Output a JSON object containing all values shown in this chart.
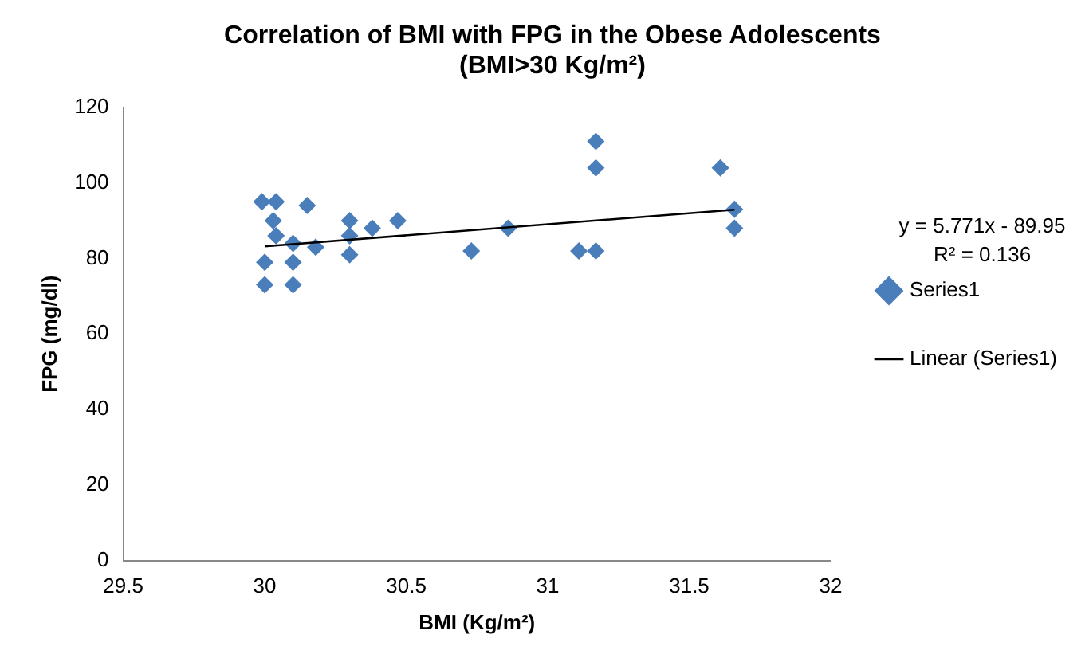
{
  "chart_data": {
    "type": "scatter",
    "title": "Correlation of BMI with FPG in the Obese Adolescents\n(BMI>30 Kg/m²)",
    "xlabel": "BMI (Kg/m²)",
    "ylabel": "FPG (mg/dl)",
    "xlim": [
      29.5,
      32
    ],
    "xticks": [
      29.5,
      30,
      30.5,
      31,
      31.5,
      32
    ],
    "ylim": [
      0,
      120
    ],
    "yticks": [
      0,
      20,
      40,
      60,
      80,
      100,
      120
    ],
    "series": [
      {
        "name": "Series1",
        "color": "#4a7ebb",
        "x": [
          29.99,
          30.04,
          30.15,
          30.03,
          30.04,
          30.1,
          30.18,
          30.0,
          30.1,
          30.0,
          30.1,
          30.3,
          30.3,
          30.3,
          30.38,
          30.47,
          30.73,
          30.86,
          31.11,
          31.17,
          31.17,
          31.17,
          31.61,
          31.66,
          31.66
        ],
        "values": [
          95,
          95,
          94,
          90,
          86,
          84,
          83,
          79,
          79,
          73,
          73,
          90,
          86,
          81,
          88,
          90,
          82,
          88,
          82,
          82,
          111,
          104,
          104,
          93,
          88
        ]
      },
      {
        "name": "Linear (Series1)",
        "type": "line",
        "color": "#000000",
        "marker": "none",
        "x": [
          30,
          31.66
        ],
        "values": [
          83.2,
          92.9
        ]
      }
    ],
    "annotations": [
      "y = 5.771x - 89.95",
      "R² = 0.136"
    ],
    "marker": "diamond",
    "grid": false,
    "legend": "right"
  }
}
